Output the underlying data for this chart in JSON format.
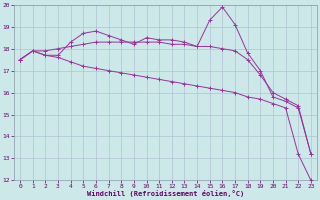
{
  "x": [
    0,
    1,
    2,
    3,
    4,
    5,
    6,
    7,
    8,
    9,
    10,
    11,
    12,
    13,
    14,
    15,
    16,
    17,
    18,
    19,
    20,
    21,
    22,
    23
  ],
  "temp": [
    17.5,
    17.9,
    17.7,
    17.7,
    18.3,
    18.7,
    18.8,
    18.6,
    18.4,
    18.2,
    18.5,
    18.4,
    18.4,
    18.3,
    18.1,
    19.3,
    19.9,
    19.1,
    17.8,
    17.0,
    15.8,
    15.6,
    15.3,
    13.2
  ],
  "smooth": [
    17.5,
    17.9,
    17.9,
    18.0,
    18.1,
    18.2,
    18.3,
    18.3,
    18.3,
    18.3,
    18.3,
    18.3,
    18.2,
    18.2,
    18.1,
    18.1,
    18.0,
    17.9,
    17.5,
    16.8,
    16.0,
    15.7,
    15.4,
    13.2
  ],
  "windchill": [
    17.5,
    17.9,
    17.7,
    17.6,
    17.4,
    17.2,
    17.1,
    17.0,
    16.9,
    16.8,
    16.7,
    16.6,
    16.5,
    16.4,
    16.3,
    16.2,
    16.1,
    16.0,
    15.8,
    15.7,
    15.5,
    15.3,
    13.2,
    12.0
  ],
  "ylim": [
    12,
    20
  ],
  "xlim": [
    -0.5,
    23.5
  ],
  "yticks": [
    12,
    13,
    14,
    15,
    16,
    17,
    18,
    19,
    20
  ],
  "xticks": [
    0,
    1,
    2,
    3,
    4,
    5,
    6,
    7,
    8,
    9,
    10,
    11,
    12,
    13,
    14,
    15,
    16,
    17,
    18,
    19,
    20,
    21,
    22,
    23
  ],
  "line_color": "#993399",
  "bg_color": "#cce8e8",
  "grid_color": "#aabbcc",
  "xlabel": "Windchill (Refroidissement éolien,°C)"
}
